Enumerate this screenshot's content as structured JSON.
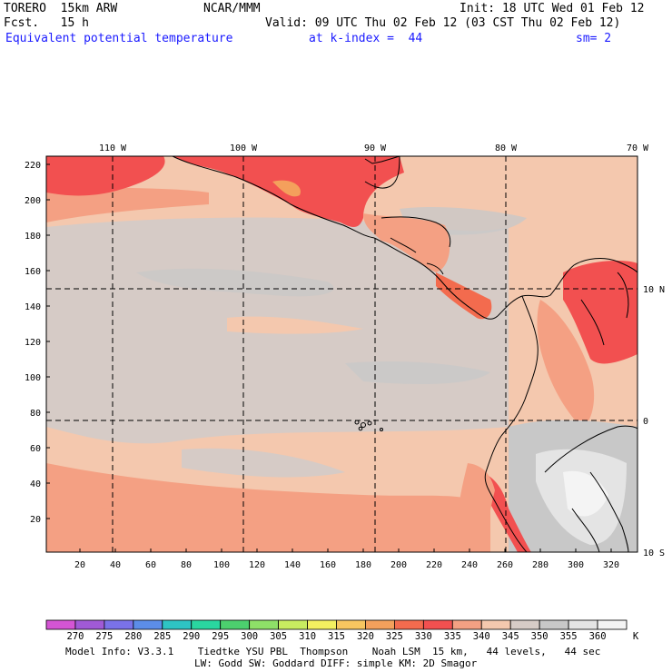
{
  "header": {
    "model": "TORERO  15km ARW",
    "center": "NCAR/MMM",
    "init": "Init: 18 UTC Wed 01 Feb 12",
    "fcst": "Fcst.   15 h",
    "valid": "Valid: 09 UTC Thu 02 Feb 12 (03 CST Thu 02 Feb 12)",
    "field": "Equivalent potential temperature",
    "level": "at k-index =  44",
    "smooth": "sm= 2"
  },
  "map": {
    "top_lon_labels": [
      "110 W",
      "100 W",
      "90 W",
      "80 W",
      "70 W"
    ],
    "right_lat_labels": [
      "10 N",
      "0",
      "10 S"
    ],
    "left_ticks": [
      "220",
      "200",
      "180",
      "160",
      "140",
      "120",
      "100",
      "80",
      "60",
      "40",
      "20"
    ],
    "bottom_ticks": [
      "20",
      "40",
      "60",
      "80",
      "100",
      "120",
      "140",
      "160",
      "180",
      "200",
      "220",
      "240",
      "260",
      "280",
      "300",
      "320"
    ]
  },
  "colorbar": {
    "labels": [
      "270",
      "275",
      "280",
      "285",
      "290",
      "295",
      "300",
      "305",
      "310",
      "315",
      "320",
      "325",
      "330",
      "335",
      "340",
      "345",
      "350",
      "355",
      "360"
    ],
    "unit": "K",
    "colors": [
      "#d455d4",
      "#a05ad6",
      "#7a72e8",
      "#5c8de8",
      "#2ec4c4",
      "#2ad6a0",
      "#4ccf6e",
      "#8ee068",
      "#c8ec60",
      "#f3f060",
      "#f7c660",
      "#f4a05c",
      "#f36b4e",
      "#f25050",
      "#f4a083",
      "#f4c8ae",
      "#d6cbc6",
      "#c8c8c8",
      "#e4e4e4",
      "#f4f4f4"
    ]
  },
  "footer": {
    "line1": "Model Info: V3.3.1    Tiedtke YSU PBL  Thompson    Noah LSM  15 km,   44 levels,   44 sec",
    "line2": "LW: Godd SW: Goddard DIFF: simple KM: 2D Smagor"
  }
}
